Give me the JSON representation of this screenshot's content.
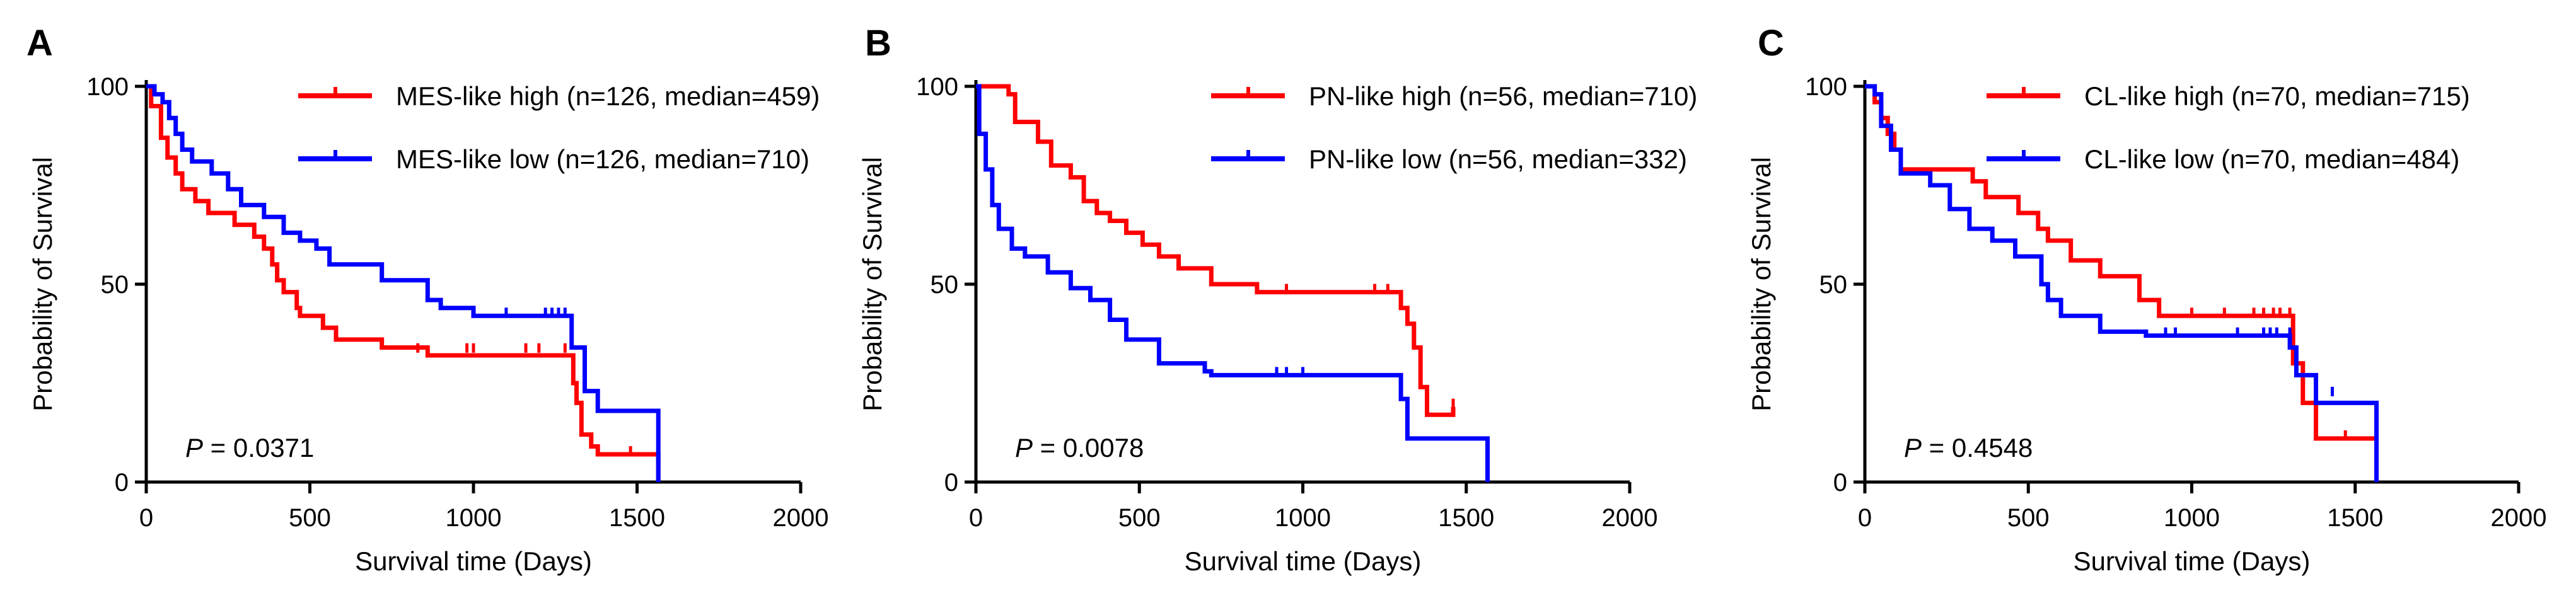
{
  "chart_data": [
    {
      "type": "line",
      "panel_label": "A",
      "xlabel": "Survival time (Days)",
      "ylabel": "Probability of Survival",
      "xlim": [
        0,
        2000
      ],
      "ylim": [
        0,
        100
      ],
      "xticks": [
        0,
        500,
        1000,
        1500,
        2000
      ],
      "yticks": [
        0,
        50,
        100
      ],
      "grid": false,
      "legend_position": "top-right",
      "annotation": {
        "prefix": "P",
        "text": " = 0.0371"
      },
      "series": [
        {
          "name": "MES-like high (n=126, median=459)",
          "color": "#ff0000",
          "steps": [
            [
              0,
              100
            ],
            [
              15,
              95
            ],
            [
              45,
              87
            ],
            [
              65,
              82
            ],
            [
              90,
              78
            ],
            [
              110,
              74
            ],
            [
              150,
              71
            ],
            [
              190,
              68
            ],
            [
              270,
              65
            ],
            [
              330,
              62
            ],
            [
              360,
              59
            ],
            [
              385,
              55
            ],
            [
              400,
              51
            ],
            [
              420,
              48
            ],
            [
              460,
              44
            ],
            [
              470,
              42
            ],
            [
              540,
              39
            ],
            [
              580,
              36
            ],
            [
              720,
              34
            ],
            [
              860,
              32
            ],
            [
              1000,
              32
            ],
            [
              1295,
              32
            ],
            [
              1305,
              25
            ],
            [
              1315,
              20
            ],
            [
              1330,
              12
            ],
            [
              1360,
              9
            ],
            [
              1380,
              7
            ],
            [
              1560,
              7
            ],
            [
              1565,
              0
            ]
          ],
          "censor": [
            [
              830,
              33
            ],
            [
              980,
              33
            ],
            [
              1000,
              33
            ],
            [
              1160,
              33
            ],
            [
              1200,
              33
            ],
            [
              1280,
              33
            ],
            [
              1480,
              7
            ]
          ]
        },
        {
          "name": "MES-like low (n=126, median=710)",
          "color": "#0000ff",
          "steps": [
            [
              0,
              100
            ],
            [
              25,
              98
            ],
            [
              50,
              96
            ],
            [
              70,
              92
            ],
            [
              90,
              88
            ],
            [
              110,
              84
            ],
            [
              140,
              81
            ],
            [
              200,
              78
            ],
            [
              250,
              74
            ],
            [
              290,
              70
            ],
            [
              360,
              67
            ],
            [
              420,
              63
            ],
            [
              470,
              61
            ],
            [
              520,
              59
            ],
            [
              560,
              55
            ],
            [
              720,
              51
            ],
            [
              860,
              46
            ],
            [
              900,
              44
            ],
            [
              1000,
              42
            ],
            [
              1290,
              42
            ],
            [
              1300,
              34
            ],
            [
              1340,
              23
            ],
            [
              1380,
              18
            ],
            [
              1400,
              18
            ],
            [
              1560,
              18
            ],
            [
              1565,
              0
            ]
          ],
          "censor": [
            [
              1000,
              42
            ],
            [
              1100,
              42
            ],
            [
              1220,
              42
            ],
            [
              1240,
              42
            ],
            [
              1260,
              42
            ],
            [
              1280,
              42
            ]
          ]
        }
      ]
    },
    {
      "type": "line",
      "panel_label": "B",
      "xlabel": "Survival time (Days)",
      "ylabel": "Probability of Survival",
      "xlim": [
        0,
        2000
      ],
      "ylim": [
        0,
        100
      ],
      "xticks": [
        0,
        500,
        1000,
        1500,
        2000
      ],
      "yticks": [
        0,
        50,
        100
      ],
      "grid": false,
      "legend_position": "top-right",
      "annotation": {
        "prefix": "P",
        "text": " = 0.0078"
      },
      "series": [
        {
          "name": "PN-like high (n=56, median=710)",
          "color": "#ff0000",
          "steps": [
            [
              0,
              100
            ],
            [
              100,
              98
            ],
            [
              120,
              91
            ],
            [
              190,
              86
            ],
            [
              230,
              80
            ],
            [
              290,
              77
            ],
            [
              330,
              71
            ],
            [
              370,
              68
            ],
            [
              410,
              66
            ],
            [
              460,
              63
            ],
            [
              510,
              60
            ],
            [
              560,
              57
            ],
            [
              620,
              54
            ],
            [
              720,
              50
            ],
            [
              860,
              48
            ],
            [
              1000,
              48
            ],
            [
              1280,
              48
            ],
            [
              1300,
              44
            ],
            [
              1320,
              40
            ],
            [
              1340,
              34
            ],
            [
              1360,
              24
            ],
            [
              1380,
              17
            ],
            [
              1450,
              17
            ],
            [
              1460,
              19
            ]
          ],
          "censor": [
            [
              950,
              48
            ],
            [
              1220,
              48
            ],
            [
              1260,
              48
            ],
            [
              1460,
              19
            ]
          ]
        },
        {
          "name": "PN-like low (n=56, median=332)",
          "color": "#0000ff",
          "steps": [
            [
              0,
              100
            ],
            [
              10,
              88
            ],
            [
              30,
              79
            ],
            [
              50,
              70
            ],
            [
              70,
              64
            ],
            [
              110,
              59
            ],
            [
              150,
              57
            ],
            [
              220,
              53
            ],
            [
              290,
              49
            ],
            [
              350,
              46
            ],
            [
              410,
              41
            ],
            [
              460,
              36
            ],
            [
              560,
              30
            ],
            [
              700,
              28
            ],
            [
              720,
              27
            ],
            [
              900,
              27
            ],
            [
              1260,
              27
            ],
            [
              1300,
              21
            ],
            [
              1320,
              11
            ],
            [
              1560,
              11
            ],
            [
              1565,
              0
            ]
          ],
          "censor": [
            [
              920,
              27
            ],
            [
              950,
              27
            ],
            [
              1000,
              27
            ]
          ]
        }
      ]
    },
    {
      "type": "line",
      "panel_label": "C",
      "xlabel": "Survival time (Days)",
      "ylabel": "Probability of Survival",
      "xlim": [
        0,
        2000
      ],
      "ylim": [
        0,
        100
      ],
      "xticks": [
        0,
        500,
        1000,
        1500,
        2000
      ],
      "yticks": [
        0,
        50,
        100
      ],
      "grid": false,
      "legend_position": "top-right",
      "annotation": {
        "prefix": "P",
        "text": " = 0.4548"
      },
      "series": [
        {
          "name": "CL-like high (n=70, median=715)",
          "color": "#ff0000",
          "steps": [
            [
              0,
              100
            ],
            [
              30,
              96
            ],
            [
              50,
              92
            ],
            [
              70,
              88
            ],
            [
              90,
              84
            ],
            [
              110,
              79
            ],
            [
              330,
              76
            ],
            [
              370,
              72
            ],
            [
              470,
              68
            ],
            [
              530,
              64
            ],
            [
              560,
              61
            ],
            [
              630,
              56
            ],
            [
              720,
              52
            ],
            [
              840,
              46
            ],
            [
              900,
              42
            ],
            [
              1000,
              42
            ],
            [
              1290,
              42
            ],
            [
              1310,
              30
            ],
            [
              1340,
              20
            ],
            [
              1380,
              11
            ],
            [
              1560,
              11
            ],
            [
              1565,
              0
            ]
          ],
          "censor": [
            [
              1000,
              42
            ],
            [
              1100,
              42
            ],
            [
              1190,
              42
            ],
            [
              1220,
              42
            ],
            [
              1250,
              42
            ],
            [
              1270,
              42
            ],
            [
              1300,
              42
            ],
            [
              1470,
              11
            ]
          ]
        },
        {
          "name": "CL-like low (n=70, median=484)",
          "color": "#0000ff",
          "steps": [
            [
              0,
              100
            ],
            [
              30,
              98
            ],
            [
              50,
              90
            ],
            [
              80,
              84
            ],
            [
              110,
              78
            ],
            [
              200,
              75
            ],
            [
              260,
              69
            ],
            [
              320,
              64
            ],
            [
              390,
              61
            ],
            [
              460,
              57
            ],
            [
              540,
              50
            ],
            [
              560,
              46
            ],
            [
              600,
              42
            ],
            [
              720,
              38
            ],
            [
              860,
              37
            ],
            [
              1000,
              37
            ],
            [
              1290,
              37
            ],
            [
              1300,
              34
            ],
            [
              1320,
              27
            ],
            [
              1380,
              20
            ],
            [
              1560,
              20
            ],
            [
              1565,
              0
            ]
          ],
          "censor": [
            [
              920,
              37
            ],
            [
              950,
              37
            ],
            [
              1140,
              37
            ],
            [
              1220,
              37
            ],
            [
              1240,
              37
            ],
            [
              1260,
              37
            ],
            [
              1300,
              37
            ],
            [
              1430,
              22
            ]
          ]
        }
      ]
    }
  ]
}
